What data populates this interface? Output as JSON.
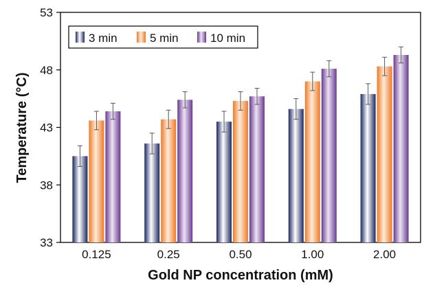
{
  "chart_data": {
    "type": "bar",
    "xlabel": "Gold NP concentration (mM)",
    "ylabel": "Temperature (°C)",
    "ylim": [
      33,
      53
    ],
    "yticks": [
      33,
      38,
      43,
      48,
      53
    ],
    "categories": [
      "0.125",
      "0.25",
      "0.50",
      "1.00",
      "2.00"
    ],
    "series": [
      {
        "name": "3 min",
        "values": [
          40.5,
          41.6,
          43.5,
          44.6,
          45.9
        ],
        "errors": [
          0.9,
          0.9,
          0.9,
          0.9,
          0.9
        ],
        "color_dark": "#1c2a63",
        "color_light": "#ffffff"
      },
      {
        "name": "5 min",
        "values": [
          43.6,
          43.7,
          45.3,
          47.0,
          48.3
        ],
        "errors": [
          0.8,
          0.8,
          0.8,
          0.8,
          0.8
        ],
        "color_dark": "#ef7a26",
        "color_light": "#fdebd9"
      },
      {
        "name": "10 min",
        "values": [
          44.4,
          45.4,
          45.7,
          48.1,
          49.3
        ],
        "errors": [
          0.7,
          0.7,
          0.7,
          0.7,
          0.7
        ],
        "color_dark": "#6b3a91",
        "color_light": "#ece3f4"
      }
    ],
    "grid": false,
    "legend_position": "top-left"
  }
}
